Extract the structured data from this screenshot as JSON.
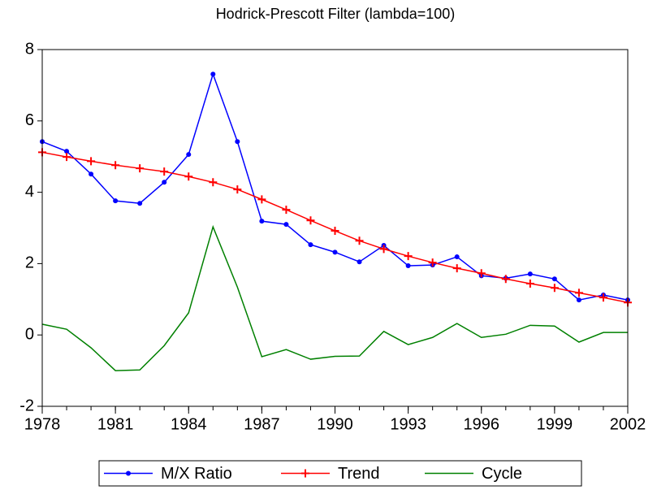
{
  "chart_data": {
    "type": "line",
    "title": "Hodrick-Prescott Filter (lambda=100)",
    "x": [
      1978,
      1979,
      1980,
      1981,
      1982,
      1983,
      1984,
      1985,
      1986,
      1987,
      1988,
      1989,
      1990,
      1991,
      1992,
      1993,
      1994,
      1995,
      1996,
      1997,
      1998,
      1999,
      2000,
      2001,
      2002
    ],
    "series": [
      {
        "name": "M/X Ratio",
        "color": "#0000ff",
        "marker": "dot",
        "values": [
          5.42,
          5.15,
          4.51,
          3.76,
          3.69,
          4.28,
          5.06,
          7.31,
          5.42,
          3.19,
          3.1,
          2.53,
          2.32,
          2.05,
          2.51,
          1.94,
          1.96,
          2.19,
          1.66,
          1.59,
          1.71,
          1.57,
          0.98,
          1.12,
          0.98
        ]
      },
      {
        "name": "Trend",
        "color": "#ff0000",
        "marker": "plus",
        "values": [
          5.12,
          4.99,
          4.87,
          4.76,
          4.67,
          4.58,
          4.44,
          4.28,
          4.08,
          3.8,
          3.51,
          3.21,
          2.92,
          2.64,
          2.41,
          2.21,
          2.03,
          1.87,
          1.73,
          1.57,
          1.44,
          1.32,
          1.18,
          1.05,
          0.91
        ]
      },
      {
        "name": "Cycle",
        "color": "#008000",
        "marker": "none",
        "values": [
          0.3,
          0.16,
          -0.36,
          -1.0,
          -0.98,
          -0.3,
          0.62,
          3.03,
          1.34,
          -0.61,
          -0.41,
          -0.68,
          -0.6,
          -0.59,
          0.1,
          -0.27,
          -0.07,
          0.32,
          -0.07,
          0.02,
          0.27,
          0.25,
          -0.2,
          0.07,
          0.07
        ]
      }
    ],
    "xlim": [
      1978,
      2002
    ],
    "xticks": [
      1978,
      1981,
      1984,
      1987,
      1990,
      1993,
      1996,
      1999,
      2002
    ],
    "ylim": [
      -2,
      8
    ],
    "yticks": [
      -2,
      0,
      2,
      4,
      6,
      8
    ],
    "grid": false,
    "legend": "bottom"
  }
}
